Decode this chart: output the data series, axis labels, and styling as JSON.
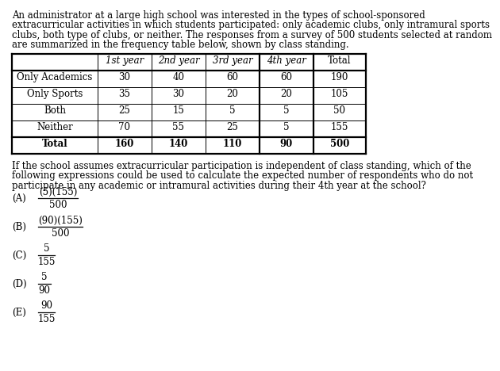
{
  "intro_text_lines": [
    "An administrator at a large high school was interested in the types of school-sponsored",
    "extracurricular activities in which students participated: only academic clubs, only intramural sports",
    "clubs, both type of clubs, or neither. The responses from a survey of 500 students selected at random",
    "are summarized in the frequency table below, shown by class standing."
  ],
  "col_headers": [
    "1st year",
    "2nd year",
    "3rd year",
    "4th year",
    "Total"
  ],
  "col_sup": [
    "st",
    "nd",
    "rd",
    "th",
    ""
  ],
  "row_headers": [
    "Only Academics",
    "Only Sports",
    "Both",
    "Neither",
    "Total"
  ],
  "table_data": [
    [
      30,
      40,
      60,
      60,
      190
    ],
    [
      35,
      30,
      20,
      20,
      105
    ],
    [
      25,
      15,
      5,
      5,
      50
    ],
    [
      70,
      55,
      25,
      5,
      155
    ],
    [
      160,
      140,
      110,
      90,
      500
    ]
  ],
  "question_text_lines": [
    "If the school assumes extracurricular participation is independent of class standing, which of the",
    "following expressions could be used to calculate the expected number of respondents who do not",
    "participate in any academic or intramural activities during their 4th year at the school?"
  ],
  "answers": [
    {
      "label": "(A)",
      "numerator": "(5)(155)",
      "denominator": "500"
    },
    {
      "label": "(B)",
      "numerator": "(90)(155)",
      "denominator": "500"
    },
    {
      "label": "(C)",
      "numerator": "5",
      "denominator": "155"
    },
    {
      "label": "(D)",
      "numerator": "5",
      "denominator": "90"
    },
    {
      "label": "(E)",
      "numerator": "90",
      "denominator": "155"
    }
  ],
  "bg_color": "#ffffff",
  "text_color": "#000000"
}
